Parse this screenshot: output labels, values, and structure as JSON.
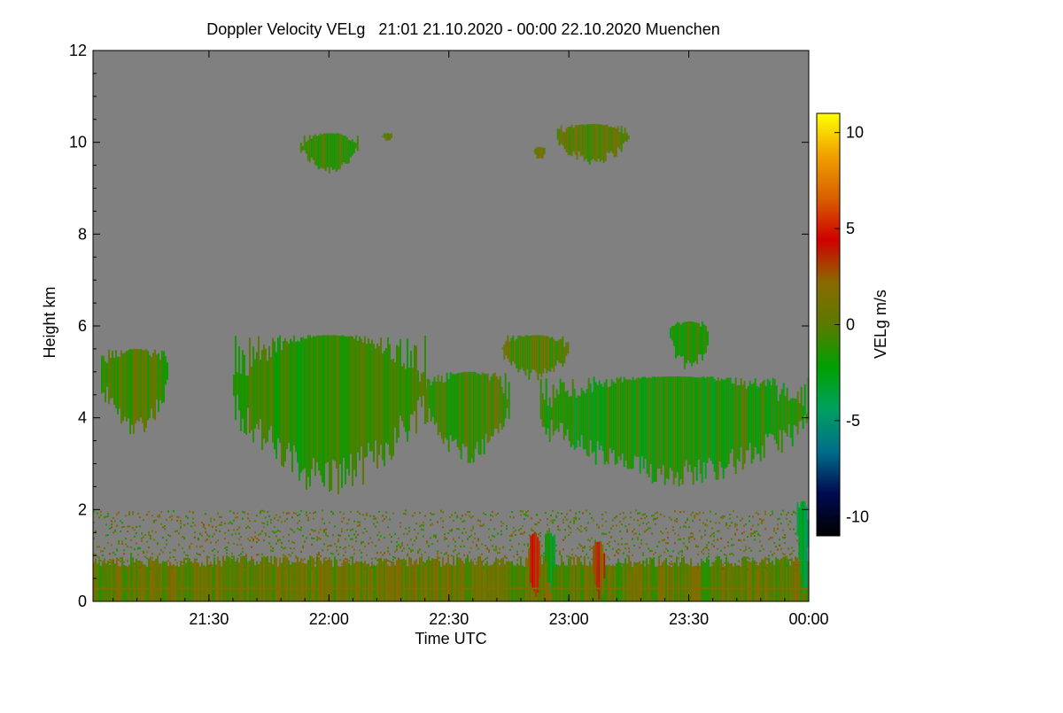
{
  "chart_data": {
    "type": "heatmap",
    "title": "Doppler Velocity VELg   21:01 21.10.2020 - 00:00 22.10.2020 Muenchen",
    "xlabel": "Time UTC",
    "ylabel": "Height km",
    "colorbar_label": "VELg m/s",
    "x_start_hours": 21.0167,
    "x_end_hours": 24.0,
    "y_range_km": [
      0,
      12
    ],
    "color_range": [
      -11,
      11
    ],
    "x_ticks": [
      {
        "label": "21:30",
        "hours": 21.5
      },
      {
        "label": "22:00",
        "hours": 22.0
      },
      {
        "label": "22:30",
        "hours": 22.5
      },
      {
        "label": "23:00",
        "hours": 23.0
      },
      {
        "label": "23:30",
        "hours": 23.5
      },
      {
        "label": "00:00",
        "hours": 24.0
      }
    ],
    "y_ticks": [
      {
        "label": "0",
        "value": 0
      },
      {
        "label": "2",
        "value": 2
      },
      {
        "label": "4",
        "value": 4
      },
      {
        "label": "6",
        "value": 6
      },
      {
        "label": "8",
        "value": 8
      },
      {
        "label": "10",
        "value": 10
      },
      {
        "label": "12",
        "value": 12
      }
    ],
    "colorbar_ticks": [
      {
        "label": "10",
        "value": 10
      },
      {
        "label": "5",
        "value": 5
      },
      {
        "label": "0",
        "value": 0
      },
      {
        "label": "-5",
        "value": -5
      },
      {
        "label": "-10",
        "value": -10
      }
    ],
    "colorbar_colors": [
      "#000000",
      "#000a50",
      "#006e8a",
      "#00a060",
      "#00a000",
      "#5a7a00",
      "#8a6a00",
      "#d00000",
      "#d86000",
      "#f0a000",
      "#ffff00"
    ],
    "no_data_color": "#808080",
    "echo_regions": [
      {
        "name": "cirrus-patch-1",
        "t_start": 21.88,
        "t_end": 22.12,
        "h_bottom": 9.3,
        "h_top": 10.2,
        "velocity": -1.0
      },
      {
        "name": "cirrus-patch-2",
        "t_start": 22.22,
        "t_end": 22.26,
        "h_bottom": 10.0,
        "h_top": 10.2,
        "velocity": 0.5
      },
      {
        "name": "cirrus-patch-3",
        "t_start": 22.85,
        "t_end": 22.9,
        "h_bottom": 9.6,
        "h_top": 9.9,
        "velocity": 0.5
      },
      {
        "name": "cirrus-patch-4",
        "t_start": 22.95,
        "t_end": 23.25,
        "h_bottom": 9.5,
        "h_top": 10.4,
        "velocity": 0.0
      },
      {
        "name": "midlevel-layer-1",
        "t_start": 21.05,
        "t_end": 21.33,
        "h_bottom": 3.6,
        "h_top": 5.5,
        "velocity": -0.5
      },
      {
        "name": "midlevel-layer-2",
        "t_start": 21.6,
        "t_end": 22.4,
        "h_bottom": 2.3,
        "h_top": 5.8,
        "velocity": -1.0
      },
      {
        "name": "midlevel-layer-3",
        "t_start": 22.4,
        "t_end": 22.75,
        "h_bottom": 3.0,
        "h_top": 5.0,
        "velocity": -0.5
      },
      {
        "name": "midlevel-layer-4",
        "t_start": 22.72,
        "t_end": 23.0,
        "h_bottom": 4.8,
        "h_top": 5.8,
        "velocity": 0.0
      },
      {
        "name": "midlevel-layer-5",
        "t_start": 22.88,
        "t_end": 24.0,
        "h_bottom": 2.5,
        "h_top": 4.9,
        "velocity": -1.5
      },
      {
        "name": "midlevel-layer-6",
        "t_start": 23.42,
        "t_end": 23.58,
        "h_bottom": 5.0,
        "h_top": 6.1,
        "velocity": -1.5
      },
      {
        "name": "boundary-layer",
        "t_start": 21.0167,
        "t_end": 24.0,
        "h_bottom": 0.0,
        "h_top": 2.0,
        "velocity": 0.5
      },
      {
        "name": "precip-streak-1",
        "t_start": 22.83,
        "t_end": 22.88,
        "h_bottom": 0.0,
        "h_top": 1.5,
        "velocity": 3.5
      },
      {
        "name": "precip-streak-2",
        "t_start": 22.9,
        "t_end": 22.94,
        "h_bottom": 0.0,
        "h_top": 1.5,
        "velocity": -2.5
      },
      {
        "name": "precip-streak-3",
        "t_start": 23.1,
        "t_end": 23.15,
        "h_bottom": 0.0,
        "h_top": 1.3,
        "velocity": 2.5
      },
      {
        "name": "fallstreak-end",
        "t_start": 23.95,
        "t_end": 24.0,
        "h_bottom": 0.0,
        "h_top": 2.2,
        "velocity": -3.5
      }
    ]
  }
}
